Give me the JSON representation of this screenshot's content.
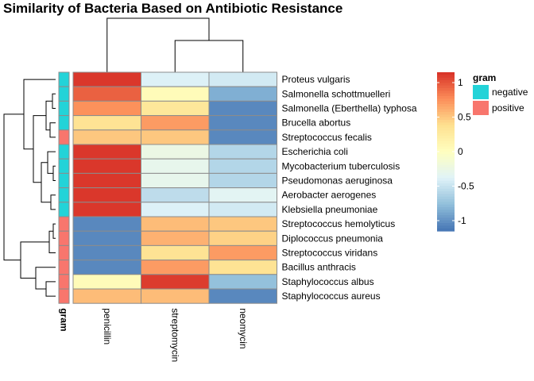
{
  "chart_data": {
    "type": "heatmap",
    "title": "Similarity of Bacteria Based on Antibiotic Resistance",
    "columns": [
      "penicillin",
      "streptomycin",
      "neomycin"
    ],
    "rows": [
      {
        "name": "Proteus vulgaris",
        "gram": "negative",
        "values": [
          1.12,
          -0.4,
          -0.45
        ]
      },
      {
        "name": "Salmonella schottmuelleri",
        "gram": "negative",
        "values": [
          0.95,
          0.05,
          -0.85
        ]
      },
      {
        "name": "Salmonella (Eberthella) typhosa",
        "gram": "negative",
        "values": [
          0.75,
          0.3,
          -1.05
        ]
      },
      {
        "name": "Brucella abortus",
        "gram": "negative",
        "values": [
          0.35,
          0.7,
          -1.05
        ]
      },
      {
        "name": "Streptococcus fecalis",
        "gram": "positive",
        "values": [
          0.5,
          0.5,
          -1.05
        ]
      },
      {
        "name": "Escherichia coli",
        "gram": "negative",
        "values": [
          1.12,
          -0.25,
          -0.6
        ]
      },
      {
        "name": "Mycobacterium tuberculosis",
        "gram": "negative",
        "values": [
          1.12,
          -0.3,
          -0.6
        ]
      },
      {
        "name": "Pseudomonas aeruginosa",
        "gram": "negative",
        "values": [
          1.12,
          -0.3,
          -0.6
        ]
      },
      {
        "name": "Aerobacter aerogenes",
        "gram": "negative",
        "values": [
          1.12,
          -0.55,
          -0.35
        ]
      },
      {
        "name": "Klebsiella pneumoniae",
        "gram": "negative",
        "values": [
          1.12,
          -0.4,
          -0.45
        ]
      },
      {
        "name": "Streptococcus hemolyticus",
        "gram": "positive",
        "values": [
          -1.05,
          0.55,
          0.5
        ]
      },
      {
        "name": "Diplococcus pneumonia",
        "gram": "positive",
        "values": [
          -1.05,
          0.6,
          0.45
        ]
      },
      {
        "name": "Streptococcus viridans",
        "gram": "positive",
        "values": [
          -1.05,
          0.35,
          0.7
        ]
      },
      {
        "name": "Bacillus anthracis",
        "gram": "positive",
        "values": [
          -1.05,
          0.7,
          0.35
        ]
      },
      {
        "name": "Staphylococcus albus",
        "gram": "positive",
        "values": [
          0.05,
          1.1,
          -0.75
        ]
      },
      {
        "name": "Staphylococcus aureus",
        "gram": "positive",
        "values": [
          0.55,
          0.55,
          -1.05
        ]
      }
    ],
    "annotation": {
      "label": "gram",
      "legend_title": "gram",
      "categories": [
        {
          "name": "negative",
          "color": "#23D3D8"
        },
        {
          "name": "positive",
          "color": "#F8766D"
        }
      ]
    },
    "color_scale": {
      "range": [
        -1.15,
        1.15
      ],
      "ticks": [
        "1",
        "0.5",
        "0",
        "-0.5",
        "-1"
      ],
      "tick_values": [
        1,
        0.5,
        0,
        -0.5,
        -1
      ],
      "colors": [
        "#4575B4",
        "#91BFDB",
        "#E0F3F8",
        "#FFFFBF",
        "#FEE090",
        "#FC8D59",
        "#D73027"
      ]
    },
    "cell_border_color": "#8C8C8C",
    "dendrogram": true
  }
}
